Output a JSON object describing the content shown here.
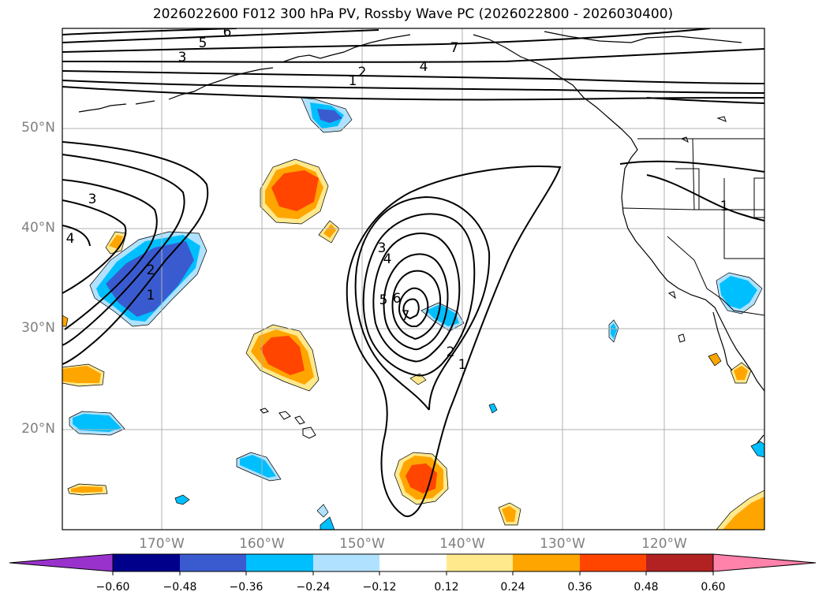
{
  "title": "2026022600 F012 300 hPa PV, Rossby Wave PC (2026022800 - 2026030400)",
  "lat_labels": [
    "50°N",
    "40°N",
    "30°N",
    "20°N"
  ],
  "lon_labels": [
    "170°W",
    "160°W",
    "150°W",
    "140°W",
    "130°W",
    "120°W"
  ],
  "colorbar": {
    "ticks": [
      "−0.60",
      "−0.48",
      "−0.36",
      "−0.24",
      "−0.12",
      "0.12",
      "0.24",
      "0.36",
      "0.48",
      "0.60"
    ],
    "colors": [
      "#9932cc",
      "#00008b",
      "#3a5bd0",
      "#00bfff",
      "#b0e2ff",
      "#ffffff",
      "#ffe98c",
      "#ffa500",
      "#ff4500",
      "#b22222",
      "#ff82ab"
    ]
  },
  "contour_labels": [
    "6",
    "5",
    "3",
    "7",
    "4",
    "2",
    "1",
    "3",
    "4",
    "2",
    "1",
    "3",
    "4",
    "5",
    "6",
    "7",
    "2",
    "1",
    "1"
  ],
  "colors": {
    "contour": "#000000",
    "grid": "#b0b0b0",
    "coast": "#000000"
  }
}
